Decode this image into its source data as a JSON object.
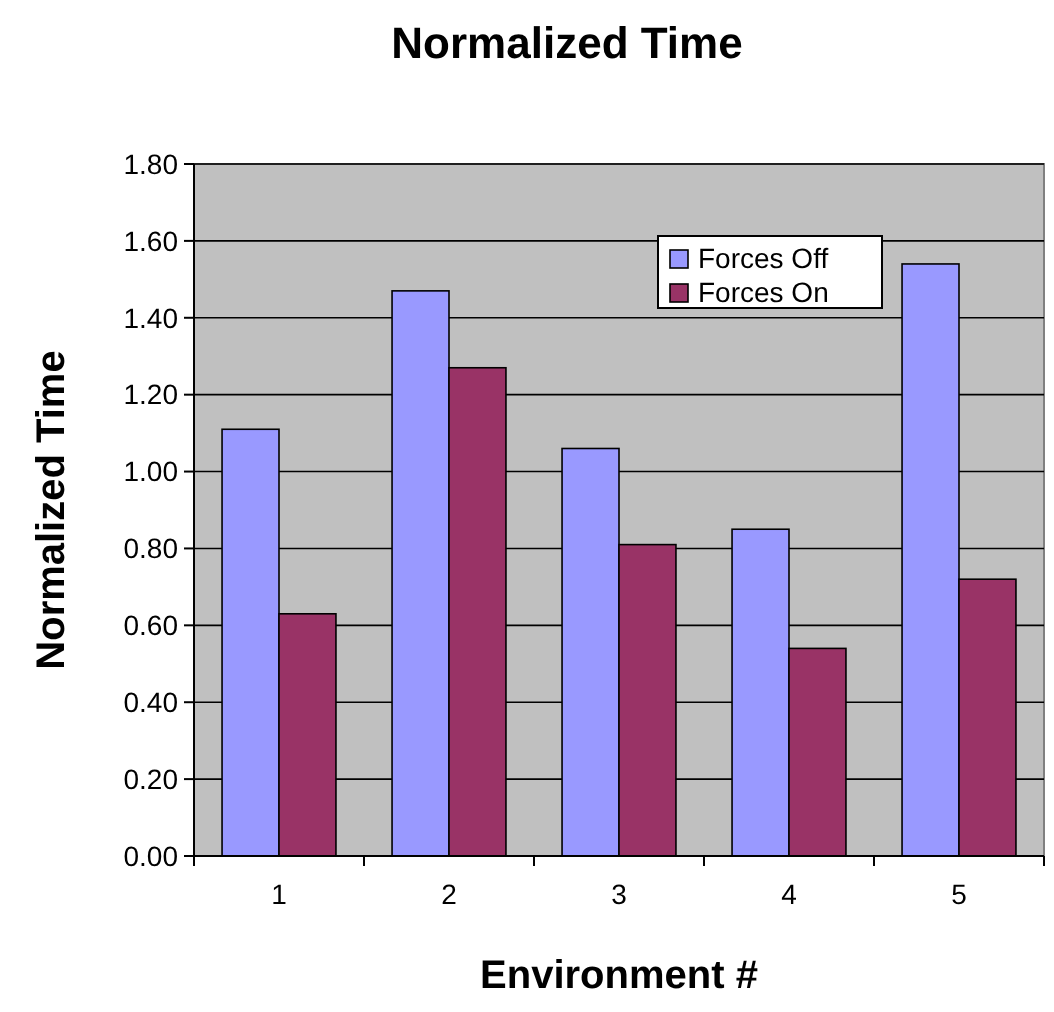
{
  "chart_data": {
    "type": "bar",
    "title": "Normalized Time",
    "xlabel": "Environment #",
    "ylabel": "Normalized Time",
    "categories": [
      "1",
      "2",
      "3",
      "4",
      "5"
    ],
    "series": [
      {
        "name": "Forces Off",
        "color": "#9999ff",
        "values": [
          1.11,
          1.47,
          1.06,
          0.85,
          1.54
        ]
      },
      {
        "name": "Forces On",
        "color": "#993366",
        "values": [
          0.63,
          1.27,
          0.81,
          0.54,
          0.72
        ]
      }
    ],
    "ylim": [
      0,
      1.8
    ],
    "yticks": [
      {
        "value": 0,
        "label": "0.00"
      },
      {
        "value": 0.2,
        "label": "0.20"
      },
      {
        "value": 0.4,
        "label": "0.40"
      },
      {
        "value": 0.6,
        "label": "0.60"
      },
      {
        "value": 0.8,
        "label": "0.80"
      },
      {
        "value": 1,
        "label": "1.00"
      },
      {
        "value": 1.2,
        "label": "1.20"
      },
      {
        "value": 1.4,
        "label": "1.40"
      },
      {
        "value": 1.6,
        "label": "1.60"
      },
      {
        "value": 1.8,
        "label": "1.80"
      }
    ],
    "grid": "y",
    "legend": "top right"
  }
}
